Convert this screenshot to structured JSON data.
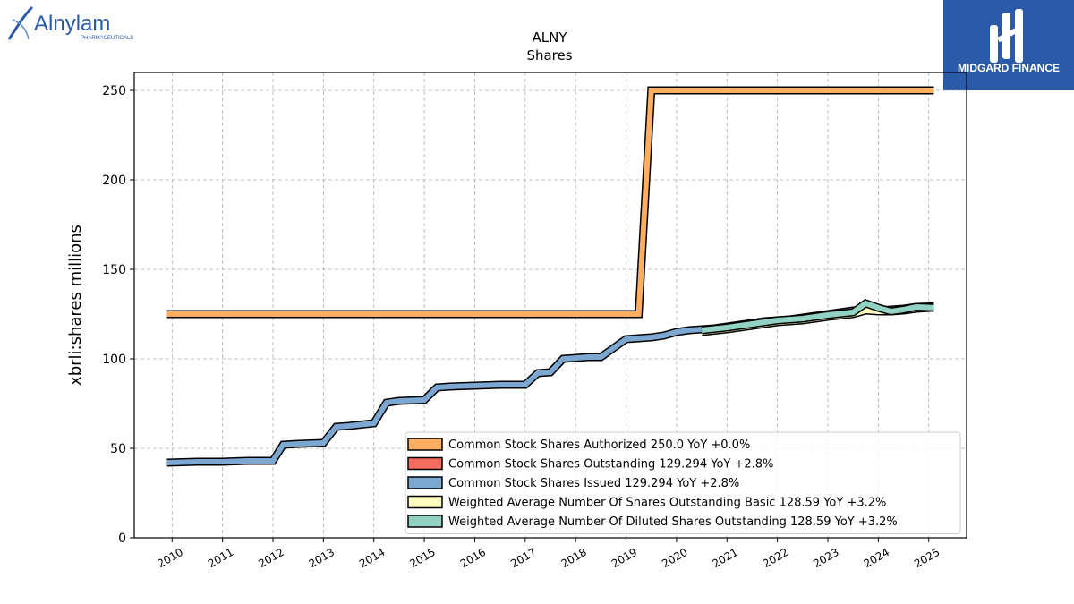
{
  "brand": {
    "left_logo_name": "Alnylam",
    "left_logo_sub": "PHARMACEUTICALS",
    "right_logo_name": "MIDGARD FINANCE",
    "right_logo_bg": "#2b5aa8"
  },
  "chart_data": {
    "type": "area",
    "title": "ALNY",
    "subtitle": "Shares",
    "ylabel": "xbrli:shares millions",
    "xlabel": "",
    "ylim": [
      0,
      260
    ],
    "xlim": [
      2009.25,
      2025.75
    ],
    "yticks": [
      0,
      50,
      100,
      150,
      200,
      250
    ],
    "xticks": [
      "2010",
      "2011",
      "2012",
      "2013",
      "2014",
      "2015",
      "2016",
      "2017",
      "2018",
      "2019",
      "2020",
      "2021",
      "2022",
      "2023",
      "2024",
      "2025"
    ],
    "grid": true,
    "legend_position": "lower-right",
    "series": [
      {
        "name": "Common Stock Shares Authorized  250.0 YoY +0.0%",
        "color": "#fdae61",
        "x": [
          2009.9,
          2019.25,
          2019.5,
          2025.1
        ],
        "y": [
          125,
          125,
          250,
          250
        ]
      },
      {
        "name": "Common Stock Shares Outstanding  129.294 YoY +2.8%",
        "color": "#f46d5f",
        "x": [],
        "y": []
      },
      {
        "name": "Common Stock Shares Issued  129.294 YoY +2.8%",
        "color": "#7ba7d1",
        "x": [
          2009.9,
          2010.5,
          2011.0,
          2011.5,
          2012.0,
          2012.2,
          2012.5,
          2013.0,
          2013.25,
          2013.5,
          2014.0,
          2014.25,
          2014.5,
          2015.0,
          2015.25,
          2015.5,
          2016.0,
          2016.5,
          2017.0,
          2017.25,
          2017.5,
          2017.75,
          2018.0,
          2018.25,
          2018.5,
          2019.0,
          2019.25,
          2019.5,
          2019.75,
          2020.0,
          2020.25,
          2020.5,
          2020.75,
          2021.0,
          2021.25,
          2021.5,
          2021.75,
          2022.0,
          2022.25,
          2022.5,
          2022.75,
          2023.0,
          2023.25,
          2023.5,
          2023.75,
          2024.0,
          2024.25,
          2024.5,
          2024.75,
          2025.1
        ],
        "y": [
          42,
          42.5,
          42.5,
          43,
          43,
          52,
          52.5,
          53,
          62,
          62.5,
          64,
          75.5,
          76.5,
          77,
          84,
          84.5,
          85,
          85.5,
          85.5,
          92,
          92.5,
          100,
          100.5,
          101,
          101,
          111,
          111.5,
          112,
          113,
          115,
          116,
          116.5,
          117,
          118,
          119,
          120,
          121,
          121.5,
          122,
          123,
          124,
          125,
          126,
          127,
          127.5,
          127,
          127.5,
          128,
          129,
          129.294
        ]
      },
      {
        "name": "Weighted Average Number Of Shares Outstanding Basic  128.59 YoY +3.2%",
        "color": "#ffffbf",
        "x": [
          2020.5,
          2021.0,
          2021.5,
          2022.0,
          2022.5,
          2023.0,
          2023.5,
          2023.75,
          2024.0,
          2024.25,
          2024.5,
          2024.75,
          2025.1
        ],
        "y": [
          115,
          116.5,
          118.5,
          120.5,
          121.5,
          123.5,
          125,
          127,
          126.5,
          126.5,
          127,
          128,
          128.59
        ]
      },
      {
        "name": "Weighted Average Number Of Diluted Shares Outstanding  128.59 YoY +3.2%",
        "color": "#91d2c2",
        "x": [
          2020.5,
          2021.0,
          2021.5,
          2022.0,
          2022.5,
          2023.0,
          2023.5,
          2023.75,
          2024.0,
          2024.25,
          2024.5,
          2024.75,
          2025.1
        ],
        "y": [
          116,
          117.5,
          119.5,
          121.5,
          122.5,
          124.5,
          126,
          131,
          128.5,
          126.5,
          127.5,
          129,
          128.59
        ]
      }
    ]
  }
}
